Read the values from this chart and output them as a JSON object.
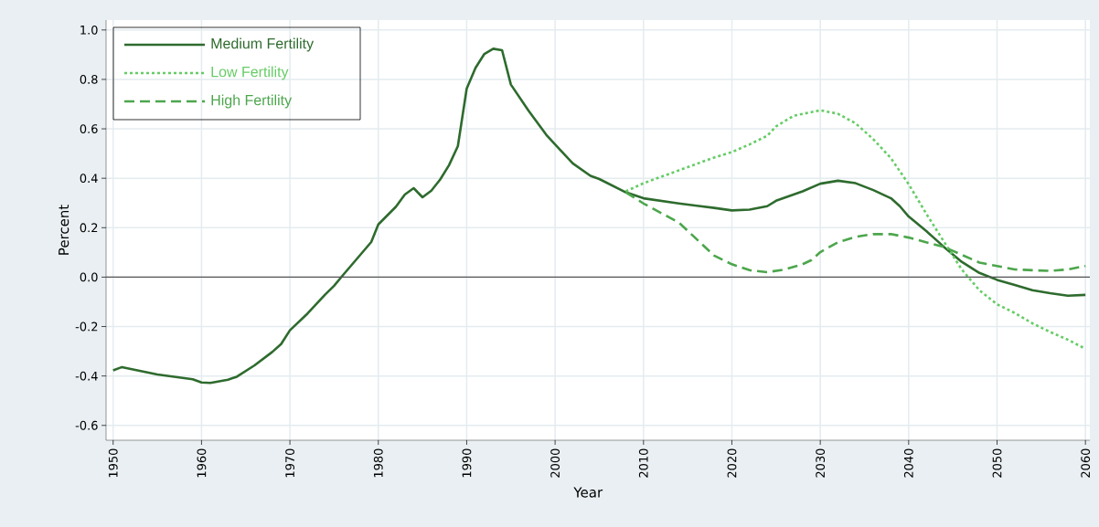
{
  "chart_data": {
    "type": "line",
    "xlabel": "Year",
    "ylabel": "Percent",
    "xlim": [
      1949.2,
      2060.5
    ],
    "ylim": [
      -0.66,
      1.04
    ],
    "xticks": [
      1950,
      1960,
      1970,
      1980,
      1990,
      2000,
      2010,
      2020,
      2030,
      2040,
      2050,
      2060
    ],
    "yticks": [
      {
        "value": -0.6,
        "label": "-0.6"
      },
      {
        "value": -0.4,
        "label": "-0.4"
      },
      {
        "value": -0.2,
        "label": "-0.2"
      },
      {
        "value": 0,
        "label": "0.0"
      },
      {
        "value": 0.2,
        "label": "0.2"
      },
      {
        "value": 0.4,
        "label": "0.4"
      },
      {
        "value": 0.6,
        "label": "0.6"
      },
      {
        "value": 0.8,
        "label": "0.8"
      },
      {
        "value": 1,
        "label": "1.0"
      }
    ],
    "grid": true,
    "legend": "top left",
    "ref_lines": [
      {
        "axis": "y",
        "value": 0,
        "color": "#555555"
      }
    ],
    "series": [
      {
        "name": "Medium Fertility",
        "color": "#2e6b2e",
        "line_style": "solid",
        "x": [
          1950,
          1951,
          1955,
          1959,
          1960,
          1961,
          1963,
          1964,
          1966,
          1968,
          1969,
          1970,
          1972,
          1974,
          1975,
          1976,
          1979.2,
          1980,
          1982,
          1983,
          1984,
          1985,
          1986,
          1987,
          1988,
          1989,
          1990,
          1991,
          1992,
          1993,
          1994,
          1995,
          1997,
          1999,
          2000,
          2002,
          2004,
          2005,
          2008,
          2010,
          2014,
          2018,
          2020,
          2022,
          2024,
          2025,
          2028,
          2030,
          2032,
          2034,
          2036,
          2038,
          2039,
          2040,
          2042,
          2044,
          2046,
          2048,
          2050,
          2052,
          2054,
          2056,
          2058,
          2060
        ],
        "values": [
          -0.377,
          -0.364,
          -0.394,
          -0.413,
          -0.426,
          -0.428,
          -0.415,
          -0.403,
          -0.357,
          -0.303,
          -0.271,
          -0.215,
          -0.147,
          -0.07,
          -0.035,
          0.008,
          0.142,
          0.213,
          0.285,
          0.334,
          0.36,
          0.323,
          0.35,
          0.395,
          0.453,
          0.53,
          0.763,
          0.847,
          0.903,
          0.924,
          0.918,
          0.779,
          0.673,
          0.576,
          0.537,
          0.46,
          0.41,
          0.397,
          0.343,
          0.319,
          0.298,
          0.28,
          0.27,
          0.273,
          0.287,
          0.309,
          0.347,
          0.378,
          0.39,
          0.38,
          0.352,
          0.319,
          0.287,
          0.245,
          0.186,
          0.122,
          0.062,
          0.017,
          -0.011,
          -0.032,
          -0.053,
          -0.065,
          -0.075,
          -0.072
        ]
      },
      {
        "name": "Low Fertility",
        "color": "#66cc66",
        "line_style": "dotted",
        "x": [
          2008,
          2010,
          2014,
          2018,
          2020,
          2022,
          2024,
          2025,
          2027,
          2030,
          2032,
          2034,
          2036,
          2038,
          2040,
          2042,
          2044,
          2046,
          2048,
          2050,
          2052,
          2054,
          2056,
          2058,
          2060
        ],
        "values": [
          0.347,
          0.38,
          0.432,
          0.484,
          0.506,
          0.537,
          0.572,
          0.61,
          0.653,
          0.675,
          0.661,
          0.622,
          0.558,
          0.481,
          0.376,
          0.256,
          0.143,
          0.031,
          -0.053,
          -0.11,
          -0.145,
          -0.187,
          -0.222,
          -0.253,
          -0.29
        ]
      },
      {
        "name": "High Fertility",
        "color": "#4ca64c",
        "line_style": "dashed",
        "x": [
          2008,
          2010,
          2014,
          2018,
          2020,
          2022,
          2024,
          2026,
          2028,
          2029,
          2030,
          2032,
          2034,
          2036,
          2038,
          2040,
          2044,
          2048,
          2052,
          2056,
          2058,
          2060
        ],
        "values": [
          0.343,
          0.298,
          0.221,
          0.087,
          0.052,
          0.028,
          0.02,
          0.031,
          0.052,
          0.069,
          0.101,
          0.141,
          0.163,
          0.174,
          0.174,
          0.16,
          0.122,
          0.059,
          0.031,
          0.025,
          0.031,
          0.045
        ]
      }
    ]
  }
}
